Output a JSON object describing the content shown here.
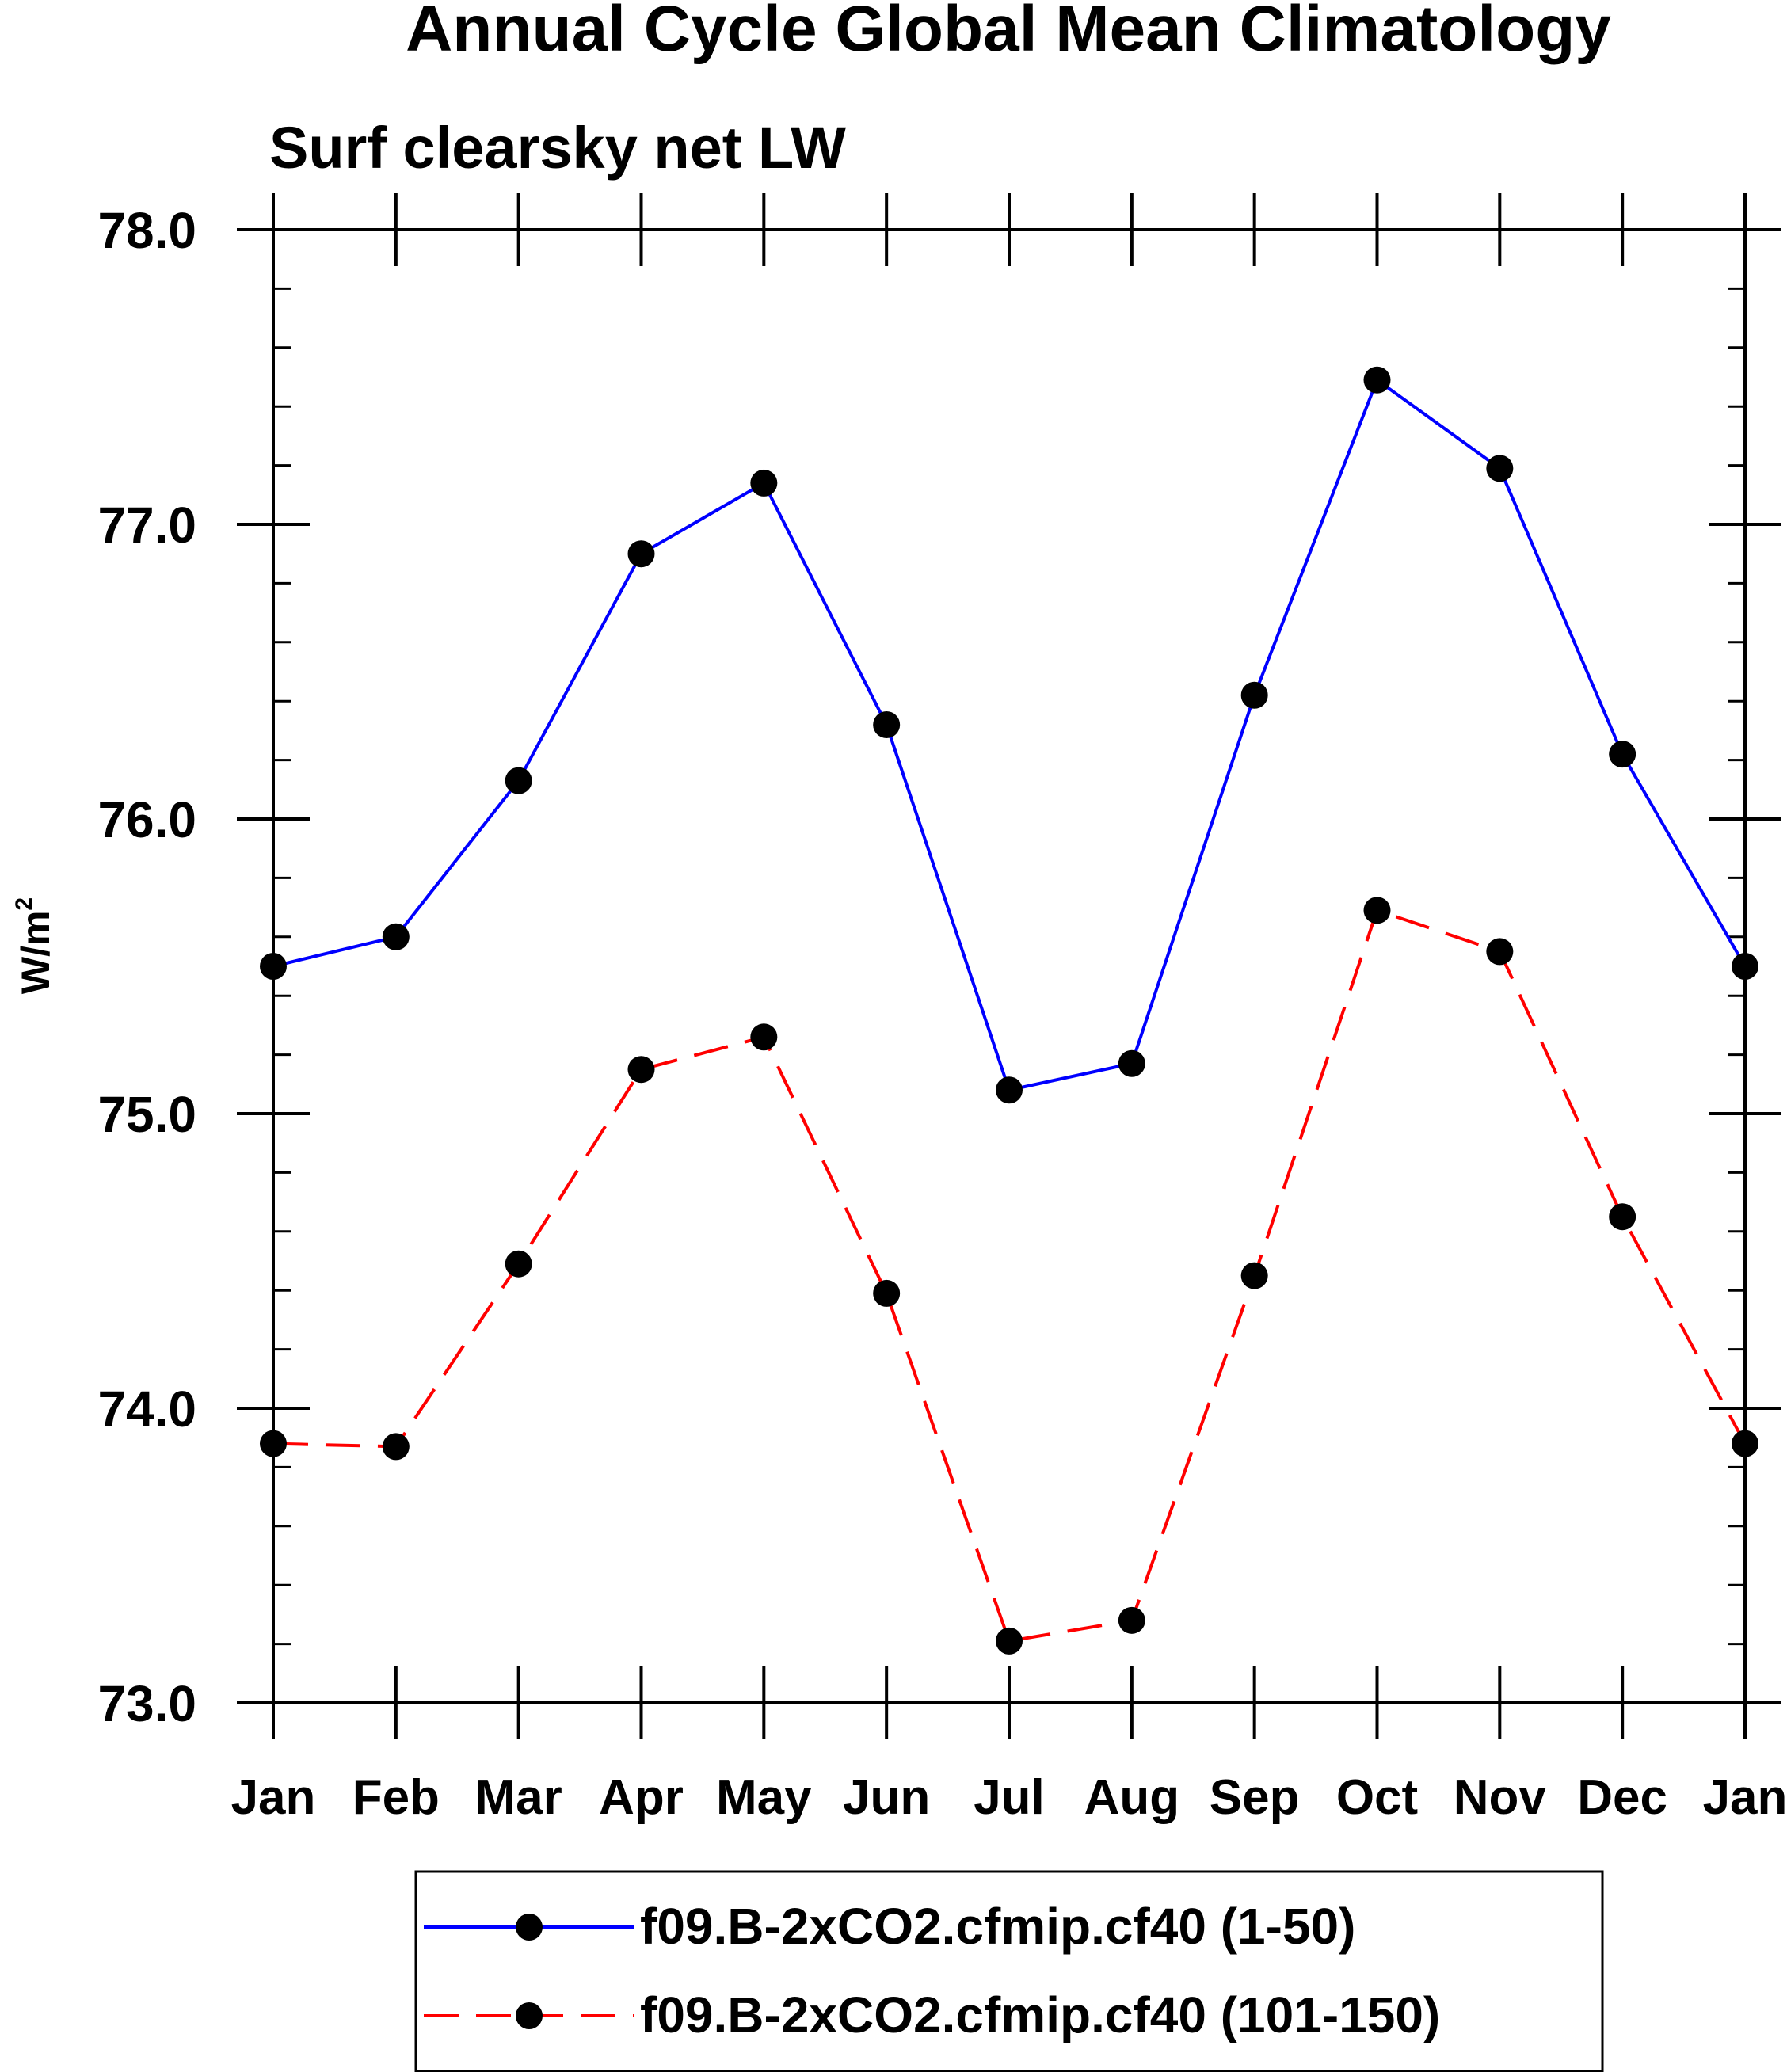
{
  "chart_data": {
    "type": "line",
    "title": "Annual Cycle Global Mean Climatology",
    "subtitle": "Surf clearsky net LW",
    "ylabel": "W/m",
    "ylabel_superscript": "2",
    "xlabel": "",
    "categories": [
      "Jan",
      "Feb",
      "Mar",
      "Apr",
      "May",
      "Jun",
      "Jul",
      "Aug",
      "Sep",
      "Oct",
      "Nov",
      "Dec",
      "Jan"
    ],
    "ylim": [
      73.0,
      78.0
    ],
    "yticks": [
      "73.0",
      "74.0",
      "75.0",
      "76.0",
      "77.0",
      "78.0"
    ],
    "series": [
      {
        "name": "f09.B-2xCO2.cfmip.cf40 (1-50)",
        "color": "#0000ff",
        "dashed": false,
        "values": [
          75.5,
          75.6,
          76.13,
          76.9,
          77.14,
          76.32,
          75.08,
          75.17,
          76.42,
          77.49,
          77.19,
          76.22,
          75.5
        ]
      },
      {
        "name": "f09.B-2xCO2.cfmip.cf40 (101-150)",
        "color": "#ff0000",
        "dashed": true,
        "values": [
          73.88,
          73.87,
          74.49,
          75.15,
          75.26,
          74.39,
          73.21,
          73.28,
          74.45,
          75.69,
          75.55,
          74.65,
          73.88
        ]
      }
    ]
  }
}
